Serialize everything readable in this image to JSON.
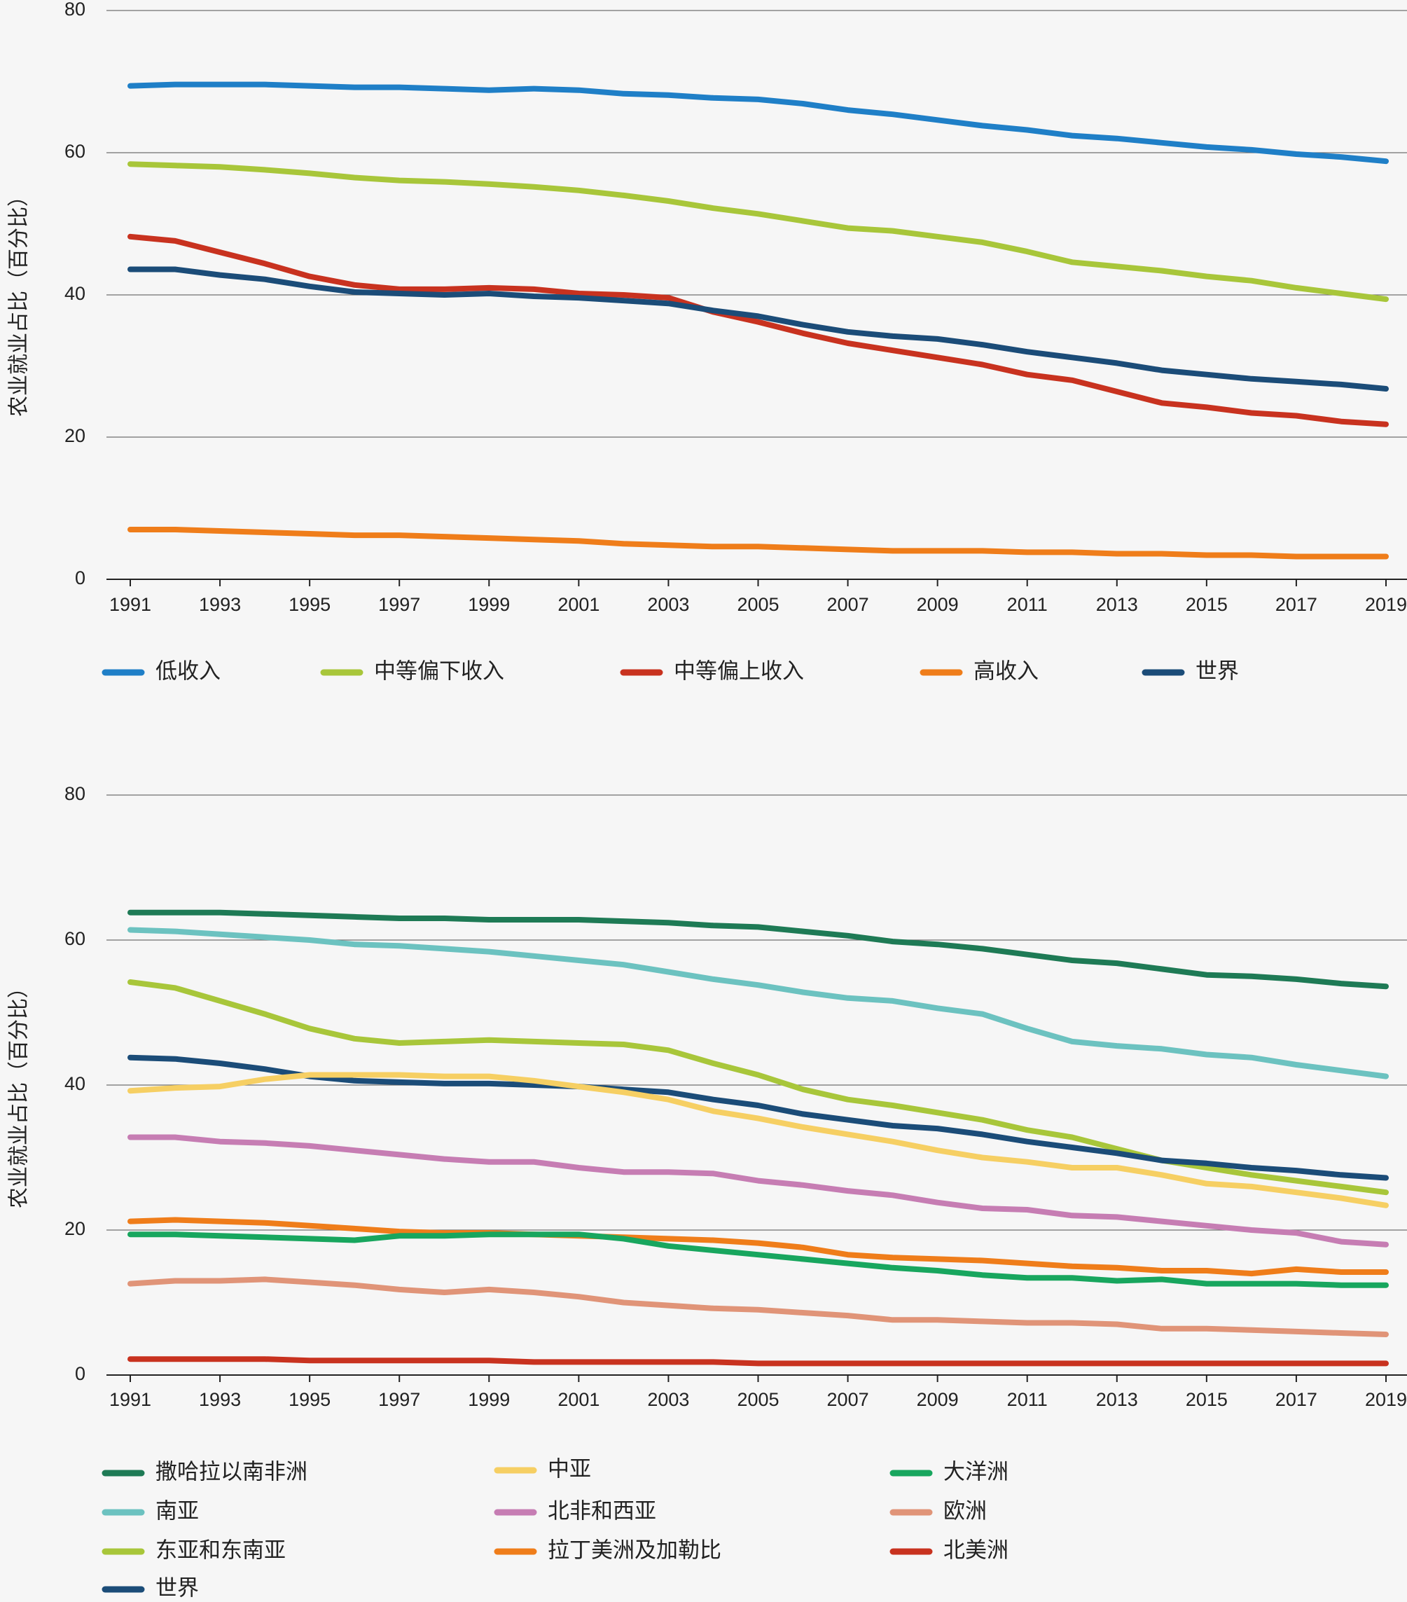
{
  "chart_data": [
    {
      "type": "line",
      "title": "",
      "ylabel": "农业就业占比（百分比）",
      "xlabel": "",
      "ylim": [
        0,
        80
      ],
      "yticks": [
        "0",
        "20",
        "40",
        "60",
        "80"
      ],
      "xticks": [
        "1991",
        "1993",
        "1995",
        "1997",
        "1999",
        "2001",
        "2003",
        "2005",
        "2007",
        "2009",
        "2011",
        "2013",
        "2015",
        "2017",
        "2019"
      ],
      "x": [
        1991,
        1992,
        1993,
        1994,
        1995,
        1996,
        1997,
        1998,
        1999,
        2000,
        2001,
        2002,
        2003,
        2004,
        2005,
        2006,
        2007,
        2008,
        2009,
        2010,
        2011,
        2012,
        2013,
        2014,
        2015,
        2016,
        2017,
        2018,
        2019
      ],
      "legend_position": "bottom",
      "series": [
        {
          "name": "低收入",
          "color": "#1f7fc7",
          "values": [
            69.4,
            69.6,
            69.6,
            69.6,
            69.4,
            69.2,
            69.2,
            69.0,
            68.8,
            69.0,
            68.8,
            68.3,
            68.1,
            67.7,
            67.5,
            66.9,
            66.0,
            65.4,
            64.6,
            63.8,
            63.2,
            62.4,
            62.0,
            61.4,
            60.8,
            60.4,
            59.8,
            59.4,
            58.8
          ]
        },
        {
          "name": "中等偏下收入",
          "color": "#a8c63a",
          "values": [
            58.4,
            58.2,
            58.0,
            57.6,
            57.1,
            56.5,
            56.1,
            55.9,
            55.6,
            55.2,
            54.7,
            54.0,
            53.2,
            52.2,
            51.4,
            50.4,
            49.4,
            49.0,
            48.2,
            47.4,
            46.1,
            44.6,
            44.0,
            43.4,
            42.6,
            42.0,
            41.0,
            40.2,
            39.4
          ]
        },
        {
          "name": "中等偏上收入",
          "color": "#c8321f",
          "values": [
            48.2,
            47.6,
            46.0,
            44.4,
            42.6,
            41.4,
            40.8,
            40.8,
            41.0,
            40.8,
            40.2,
            40.0,
            39.6,
            37.6,
            36.2,
            34.6,
            33.2,
            32.2,
            31.2,
            30.2,
            28.8,
            28.0,
            26.4,
            24.8,
            24.2,
            23.4,
            23.0,
            22.2,
            21.8
          ]
        },
        {
          "name": "高收入",
          "color": "#ef7d1a",
          "values": [
            7.0,
            7.0,
            6.8,
            6.6,
            6.4,
            6.2,
            6.2,
            6.0,
            5.8,
            5.6,
            5.4,
            5.0,
            4.8,
            4.6,
            4.6,
            4.4,
            4.2,
            4.0,
            4.0,
            4.0,
            3.8,
            3.8,
            3.6,
            3.6,
            3.4,
            3.4,
            3.2,
            3.2,
            3.2
          ]
        },
        {
          "name": "世界",
          "color": "#1b4c78",
          "values": [
            43.6,
            43.6,
            42.8,
            42.2,
            41.2,
            40.4,
            40.2,
            40.0,
            40.2,
            39.8,
            39.6,
            39.2,
            38.8,
            37.8,
            37.0,
            35.8,
            34.8,
            34.2,
            33.8,
            33.0,
            32.0,
            31.2,
            30.4,
            29.4,
            28.8,
            28.2,
            27.8,
            27.4,
            26.8
          ]
        }
      ]
    },
    {
      "type": "line",
      "title": "",
      "ylabel": "农业就业占比（百分比）",
      "xlabel": "",
      "ylim": [
        0,
        80
      ],
      "yticks": [
        "0",
        "20",
        "40",
        "60",
        "80"
      ],
      "xticks": [
        "1991",
        "1993",
        "1995",
        "1997",
        "1999",
        "2001",
        "2003",
        "2005",
        "2007",
        "2009",
        "2011",
        "2013",
        "2015",
        "2017",
        "2019"
      ],
      "x": [
        1991,
        1992,
        1993,
        1994,
        1995,
        1996,
        1997,
        1998,
        1999,
        2000,
        2001,
        2002,
        2003,
        2004,
        2005,
        2006,
        2007,
        2008,
        2009,
        2010,
        2011,
        2012,
        2013,
        2014,
        2015,
        2016,
        2017,
        2018,
        2019
      ],
      "legend_position": "bottom",
      "series": [
        {
          "name": "撒哈拉以南非洲",
          "color": "#1e7a55",
          "values": [
            63.8,
            63.8,
            63.8,
            63.6,
            63.4,
            63.2,
            63.0,
            63.0,
            62.8,
            62.8,
            62.8,
            62.6,
            62.4,
            62.0,
            61.8,
            61.2,
            60.6,
            59.8,
            59.4,
            58.8,
            58.0,
            57.2,
            56.8,
            56.0,
            55.2,
            55.0,
            54.6,
            54.0,
            53.6
          ]
        },
        {
          "name": "南亚",
          "color": "#6cc2c0",
          "values": [
            61.4,
            61.2,
            60.8,
            60.4,
            60.0,
            59.4,
            59.2,
            58.8,
            58.4,
            57.8,
            57.2,
            56.6,
            55.6,
            54.6,
            53.8,
            52.8,
            52.0,
            51.6,
            50.6,
            49.8,
            47.8,
            46.0,
            45.4,
            45.0,
            44.2,
            43.8,
            42.8,
            42.0,
            41.2
          ]
        },
        {
          "name": "东亚和东南亚",
          "color": "#a8c63a",
          "values": [
            54.2,
            53.4,
            51.6,
            49.8,
            47.8,
            46.4,
            45.8,
            46.0,
            46.2,
            46.0,
            45.8,
            45.6,
            44.8,
            43.0,
            41.4,
            39.4,
            38.0,
            37.2,
            36.2,
            35.2,
            33.8,
            32.8,
            31.2,
            29.6,
            28.6,
            27.6,
            26.8,
            26.0,
            25.2
          ]
        },
        {
          "name": "世界",
          "color": "#1b4c78",
          "values": [
            43.8,
            43.6,
            43.0,
            42.2,
            41.2,
            40.6,
            40.4,
            40.2,
            40.2,
            40.0,
            39.8,
            39.4,
            39.0,
            38.0,
            37.2,
            36.0,
            35.2,
            34.4,
            34.0,
            33.2,
            32.2,
            31.4,
            30.6,
            29.6,
            29.2,
            28.6,
            28.2,
            27.6,
            27.2
          ]
        },
        {
          "name": "中亚",
          "color": "#f6cf63",
          "values": [
            39.2,
            39.6,
            39.8,
            40.8,
            41.4,
            41.4,
            41.4,
            41.2,
            41.2,
            40.6,
            39.8,
            39.0,
            38.0,
            36.4,
            35.4,
            34.2,
            33.2,
            32.2,
            31.0,
            30.0,
            29.4,
            28.6,
            28.6,
            27.6,
            26.4,
            26.0,
            25.2,
            24.4,
            23.4
          ]
        },
        {
          "name": "北非和西亚",
          "color": "#c67db3",
          "values": [
            32.8,
            32.8,
            32.2,
            32.0,
            31.6,
            31.0,
            30.4,
            29.8,
            29.4,
            29.4,
            28.6,
            28.0,
            28.0,
            27.8,
            26.8,
            26.2,
            25.4,
            24.8,
            23.8,
            23.0,
            22.8,
            22.0,
            21.8,
            21.2,
            20.6,
            20.0,
            19.6,
            18.4,
            18.0
          ]
        },
        {
          "name": "拉丁美洲及加勒比",
          "color": "#ef7d1a",
          "values": [
            21.2,
            21.4,
            21.2,
            21.0,
            20.6,
            20.2,
            19.8,
            19.6,
            19.6,
            19.4,
            19.2,
            19.0,
            18.8,
            18.6,
            18.2,
            17.6,
            16.6,
            16.2,
            16.0,
            15.8,
            15.4,
            15.0,
            14.8,
            14.4,
            14.4,
            14.0,
            14.6,
            14.2,
            14.2
          ]
        },
        {
          "name": "大洋洲",
          "color": "#18a65e",
          "values": [
            19.4,
            19.4,
            19.2,
            19.0,
            18.8,
            18.6,
            19.2,
            19.2,
            19.4,
            19.4,
            19.4,
            18.8,
            17.8,
            17.2,
            16.6,
            16.0,
            15.4,
            14.8,
            14.4,
            13.8,
            13.4,
            13.4,
            13.0,
            13.2,
            12.6,
            12.6,
            12.6,
            12.4,
            12.4
          ]
        },
        {
          "name": "欧洲",
          "color": "#e09478",
          "values": [
            12.6,
            13.0,
            13.0,
            13.2,
            12.8,
            12.4,
            11.8,
            11.4,
            11.8,
            11.4,
            10.8,
            10.0,
            9.6,
            9.2,
            9.0,
            8.6,
            8.2,
            7.6,
            7.6,
            7.4,
            7.2,
            7.2,
            7.0,
            6.4,
            6.4,
            6.2,
            6.0,
            5.8,
            5.6
          ]
        },
        {
          "name": "北美洲",
          "color": "#c8321f",
          "values": [
            2.2,
            2.2,
            2.2,
            2.2,
            2.0,
            2.0,
            2.0,
            2.0,
            2.0,
            1.8,
            1.8,
            1.8,
            1.8,
            1.8,
            1.6,
            1.6,
            1.6,
            1.6,
            1.6,
            1.6,
            1.6,
            1.6,
            1.6,
            1.6,
            1.6,
            1.6,
            1.6,
            1.6,
            1.6
          ]
        }
      ]
    }
  ]
}
